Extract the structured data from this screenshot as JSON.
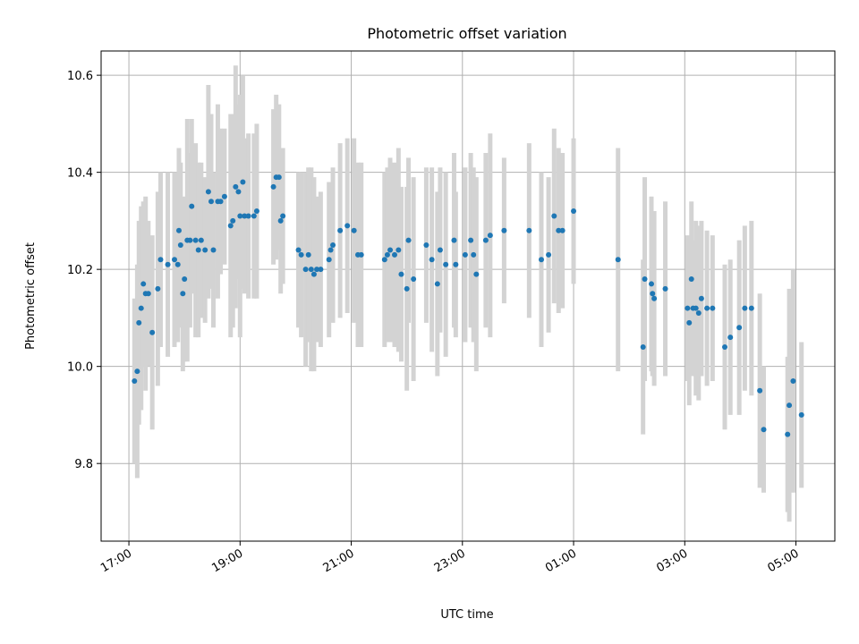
{
  "chart_data": {
    "type": "scatter",
    "title": "Photometric offset variation",
    "xlabel": "UTC time",
    "ylabel": "Photometric offset",
    "x_unit": "hours after 17:00 UTC",
    "xlim": [
      -0.5,
      12.7
    ],
    "ylim": [
      9.64,
      10.65
    ],
    "grid": true,
    "legend": "none",
    "x_ticks": [
      {
        "x": 0,
        "label": "17:00"
      },
      {
        "x": 2,
        "label": "19:00"
      },
      {
        "x": 4,
        "label": "21:00"
      },
      {
        "x": 6,
        "label": "23:00"
      },
      {
        "x": 8,
        "label": "01:00"
      },
      {
        "x": 10,
        "label": "03:00"
      },
      {
        "x": 12,
        "label": "05:00"
      }
    ],
    "y_ticks": [
      {
        "y": 9.8,
        "label": "9.8"
      },
      {
        "y": 10.0,
        "label": "10.0"
      },
      {
        "y": 10.2,
        "label": "10.2"
      },
      {
        "y": 10.4,
        "label": "10.4"
      },
      {
        "y": 10.6,
        "label": "10.6"
      }
    ],
    "colors": {
      "marker": "#1f77b4",
      "errorbar": "#d3d3d3",
      "grid": "#b0b0b0"
    },
    "points": [
      {
        "x": 0.1,
        "y": 9.97,
        "e": 0.17
      },
      {
        "x": 0.15,
        "y": 9.99,
        "e": 0.22
      },
      {
        "x": 0.18,
        "y": 10.09,
        "e": 0.21
      },
      {
        "x": 0.22,
        "y": 10.12,
        "e": 0.21
      },
      {
        "x": 0.26,
        "y": 10.17,
        "e": 0.17
      },
      {
        "x": 0.3,
        "y": 10.15,
        "e": 0.2
      },
      {
        "x": 0.35,
        "y": 10.15,
        "e": 0.15
      },
      {
        "x": 0.42,
        "y": 10.07,
        "e": 0.2
      },
      {
        "x": 0.52,
        "y": 10.16,
        "e": 0.2
      },
      {
        "x": 0.57,
        "y": 10.22,
        "e": 0.18
      },
      {
        "x": 0.7,
        "y": 10.21,
        "e": 0.19
      },
      {
        "x": 0.82,
        "y": 10.22,
        "e": 0.18
      },
      {
        "x": 0.88,
        "y": 10.21,
        "e": 0.16
      },
      {
        "x": 0.9,
        "y": 10.28,
        "e": 0.17
      },
      {
        "x": 0.93,
        "y": 10.25,
        "e": 0.17
      },
      {
        "x": 0.97,
        "y": 10.15,
        "e": 0.16
      },
      {
        "x": 1.0,
        "y": 10.18,
        "e": 0.17
      },
      {
        "x": 1.05,
        "y": 10.26,
        "e": 0.25
      },
      {
        "x": 1.1,
        "y": 10.26,
        "e": 0.18
      },
      {
        "x": 1.13,
        "y": 10.33,
        "e": 0.18
      },
      {
        "x": 1.2,
        "y": 10.26,
        "e": 0.2
      },
      {
        "x": 1.25,
        "y": 10.24,
        "e": 0.18
      },
      {
        "x": 1.3,
        "y": 10.26,
        "e": 0.16
      },
      {
        "x": 1.37,
        "y": 10.24,
        "e": 0.15
      },
      {
        "x": 1.43,
        "y": 10.36,
        "e": 0.22
      },
      {
        "x": 1.48,
        "y": 10.34,
        "e": 0.18
      },
      {
        "x": 1.52,
        "y": 10.24,
        "e": 0.16
      },
      {
        "x": 1.6,
        "y": 10.34,
        "e": 0.2
      },
      {
        "x": 1.65,
        "y": 10.34,
        "e": 0.15
      },
      {
        "x": 1.72,
        "y": 10.35,
        "e": 0.14
      },
      {
        "x": 1.83,
        "y": 10.29,
        "e": 0.23
      },
      {
        "x": 1.87,
        "y": 10.3,
        "e": 0.22
      },
      {
        "x": 1.92,
        "y": 10.37,
        "e": 0.25
      },
      {
        "x": 1.97,
        "y": 10.36,
        "e": 0.18
      },
      {
        "x": 2.0,
        "y": 10.31,
        "e": 0.25
      },
      {
        "x": 2.05,
        "y": 10.38,
        "e": 0.22
      },
      {
        "x": 2.08,
        "y": 10.31,
        "e": 0.16
      },
      {
        "x": 2.15,
        "y": 10.31,
        "e": 0.17
      },
      {
        "x": 2.25,
        "y": 10.31,
        "e": 0.17
      },
      {
        "x": 2.3,
        "y": 10.32,
        "e": 0.18
      },
      {
        "x": 2.6,
        "y": 10.37,
        "e": 0.16
      },
      {
        "x": 2.65,
        "y": 10.39,
        "e": 0.17
      },
      {
        "x": 2.7,
        "y": 10.39,
        "e": 0.15
      },
      {
        "x": 2.73,
        "y": 10.3,
        "e": 0.15
      },
      {
        "x": 2.77,
        "y": 10.31,
        "e": 0.14
      },
      {
        "x": 3.05,
        "y": 10.24,
        "e": 0.16
      },
      {
        "x": 3.1,
        "y": 10.23,
        "e": 0.17
      },
      {
        "x": 3.18,
        "y": 10.2,
        "e": 0.2
      },
      {
        "x": 3.23,
        "y": 10.23,
        "e": 0.18
      },
      {
        "x": 3.28,
        "y": 10.2,
        "e": 0.21
      },
      {
        "x": 3.33,
        "y": 10.19,
        "e": 0.2
      },
      {
        "x": 3.38,
        "y": 10.2,
        "e": 0.15
      },
      {
        "x": 3.45,
        "y": 10.2,
        "e": 0.16
      },
      {
        "x": 3.6,
        "y": 10.22,
        "e": 0.16
      },
      {
        "x": 3.63,
        "y": 10.24,
        "e": 0.13
      },
      {
        "x": 3.67,
        "y": 10.25,
        "e": 0.16
      },
      {
        "x": 3.8,
        "y": 10.28,
        "e": 0.18
      },
      {
        "x": 3.93,
        "y": 10.29,
        "e": 0.18
      },
      {
        "x": 4.05,
        "y": 10.28,
        "e": 0.19
      },
      {
        "x": 4.12,
        "y": 10.23,
        "e": 0.19
      },
      {
        "x": 4.18,
        "y": 10.23,
        "e": 0.19
      },
      {
        "x": 4.6,
        "y": 10.22,
        "e": 0.18
      },
      {
        "x": 4.65,
        "y": 10.23,
        "e": 0.18
      },
      {
        "x": 4.7,
        "y": 10.24,
        "e": 0.19
      },
      {
        "x": 4.78,
        "y": 10.23,
        "e": 0.19
      },
      {
        "x": 4.85,
        "y": 10.24,
        "e": 0.21
      },
      {
        "x": 4.9,
        "y": 10.19,
        "e": 0.18
      },
      {
        "x": 5.0,
        "y": 10.16,
        "e": 0.21
      },
      {
        "x": 5.03,
        "y": 10.26,
        "e": 0.17
      },
      {
        "x": 5.12,
        "y": 10.18,
        "e": 0.21
      },
      {
        "x": 5.35,
        "y": 10.25,
        "e": 0.16
      },
      {
        "x": 5.45,
        "y": 10.22,
        "e": 0.19
      },
      {
        "x": 5.55,
        "y": 10.17,
        "e": 0.19
      },
      {
        "x": 5.6,
        "y": 10.24,
        "e": 0.17
      },
      {
        "x": 5.7,
        "y": 10.21,
        "e": 0.19
      },
      {
        "x": 5.85,
        "y": 10.26,
        "e": 0.18
      },
      {
        "x": 5.88,
        "y": 10.21,
        "e": 0.15
      },
      {
        "x": 6.05,
        "y": 10.23,
        "e": 0.18
      },
      {
        "x": 6.15,
        "y": 10.26,
        "e": 0.18
      },
      {
        "x": 6.2,
        "y": 10.23,
        "e": 0.18
      },
      {
        "x": 6.25,
        "y": 10.19,
        "e": 0.2
      },
      {
        "x": 6.42,
        "y": 10.26,
        "e": 0.18
      },
      {
        "x": 6.5,
        "y": 10.27,
        "e": 0.21
      },
      {
        "x": 6.75,
        "y": 10.28,
        "e": 0.15
      },
      {
        "x": 7.2,
        "y": 10.28,
        "e": 0.18
      },
      {
        "x": 7.42,
        "y": 10.22,
        "e": 0.18
      },
      {
        "x": 7.55,
        "y": 10.23,
        "e": 0.16
      },
      {
        "x": 7.65,
        "y": 10.31,
        "e": 0.18
      },
      {
        "x": 7.73,
        "y": 10.28,
        "e": 0.17
      },
      {
        "x": 7.8,
        "y": 10.28,
        "e": 0.16
      },
      {
        "x": 8.0,
        "y": 10.32,
        "e": 0.15
      },
      {
        "x": 8.8,
        "y": 10.22,
        "e": 0.23
      },
      {
        "x": 9.25,
        "y": 10.04,
        "e": 0.18
      },
      {
        "x": 9.28,
        "y": 10.18,
        "e": 0.21
      },
      {
        "x": 9.4,
        "y": 10.17,
        "e": 0.18
      },
      {
        "x": 9.42,
        "y": 10.15,
        "e": 0.17
      },
      {
        "x": 9.45,
        "y": 10.14,
        "e": 0.18
      },
      {
        "x": 9.65,
        "y": 10.16,
        "e": 0.18
      },
      {
        "x": 10.05,
        "y": 10.12,
        "e": 0.15
      },
      {
        "x": 10.08,
        "y": 10.09,
        "e": 0.17
      },
      {
        "x": 10.12,
        "y": 10.18,
        "e": 0.16
      },
      {
        "x": 10.15,
        "y": 10.12,
        "e": 0.14
      },
      {
        "x": 10.2,
        "y": 10.12,
        "e": 0.18
      },
      {
        "x": 10.25,
        "y": 10.11,
        "e": 0.18
      },
      {
        "x": 10.3,
        "y": 10.14,
        "e": 0.16
      },
      {
        "x": 10.4,
        "y": 10.12,
        "e": 0.16
      },
      {
        "x": 10.5,
        "y": 10.12,
        "e": 0.15
      },
      {
        "x": 10.72,
        "y": 10.04,
        "e": 0.17
      },
      {
        "x": 10.82,
        "y": 10.06,
        "e": 0.16
      },
      {
        "x": 10.98,
        "y": 10.08,
        "e": 0.18
      },
      {
        "x": 11.08,
        "y": 10.12,
        "e": 0.17
      },
      {
        "x": 11.2,
        "y": 10.12,
        "e": 0.18
      },
      {
        "x": 11.35,
        "y": 9.95,
        "e": 0.2
      },
      {
        "x": 11.42,
        "y": 9.87,
        "e": 0.13
      },
      {
        "x": 11.85,
        "y": 9.86,
        "e": 0.16
      },
      {
        "x": 11.88,
        "y": 9.92,
        "e": 0.24
      },
      {
        "x": 11.95,
        "y": 9.97,
        "e": 0.23
      },
      {
        "x": 12.1,
        "y": 9.9,
        "e": 0.15
      }
    ]
  }
}
